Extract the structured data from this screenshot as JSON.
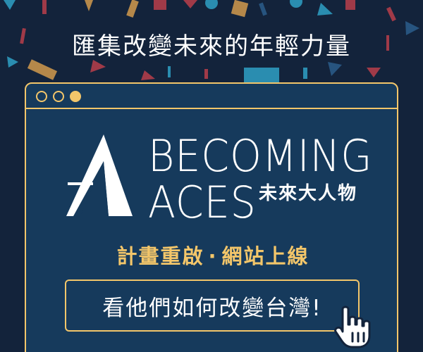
{
  "headline": "匯集改變未來的年輕力量",
  "brand": {
    "word_line1": "BECOMING",
    "word_line2": "ACES",
    "subtitle_zh": "未來大人物"
  },
  "tagline": {
    "part1": "計畫重啟",
    "separator": "·",
    "part2": "網站上線"
  },
  "cta": {
    "label": "看他們如何改變台灣!"
  },
  "icons": {
    "window_controls": [
      "window-dot-icon",
      "window-dot-icon",
      "window-dot-icon"
    ],
    "logo": "aces-a-logo-icon",
    "cursor": "pointer-hand-icon"
  },
  "colors": {
    "background": "#13233b",
    "panel": "#163a5c",
    "accent_gold": "#f3c66a",
    "text": "#ffffff",
    "confetti_red": "#a03a48",
    "confetti_teal": "#2a8db0",
    "confetti_gold": "#b5884a",
    "confetti_navy": "#27547f"
  }
}
